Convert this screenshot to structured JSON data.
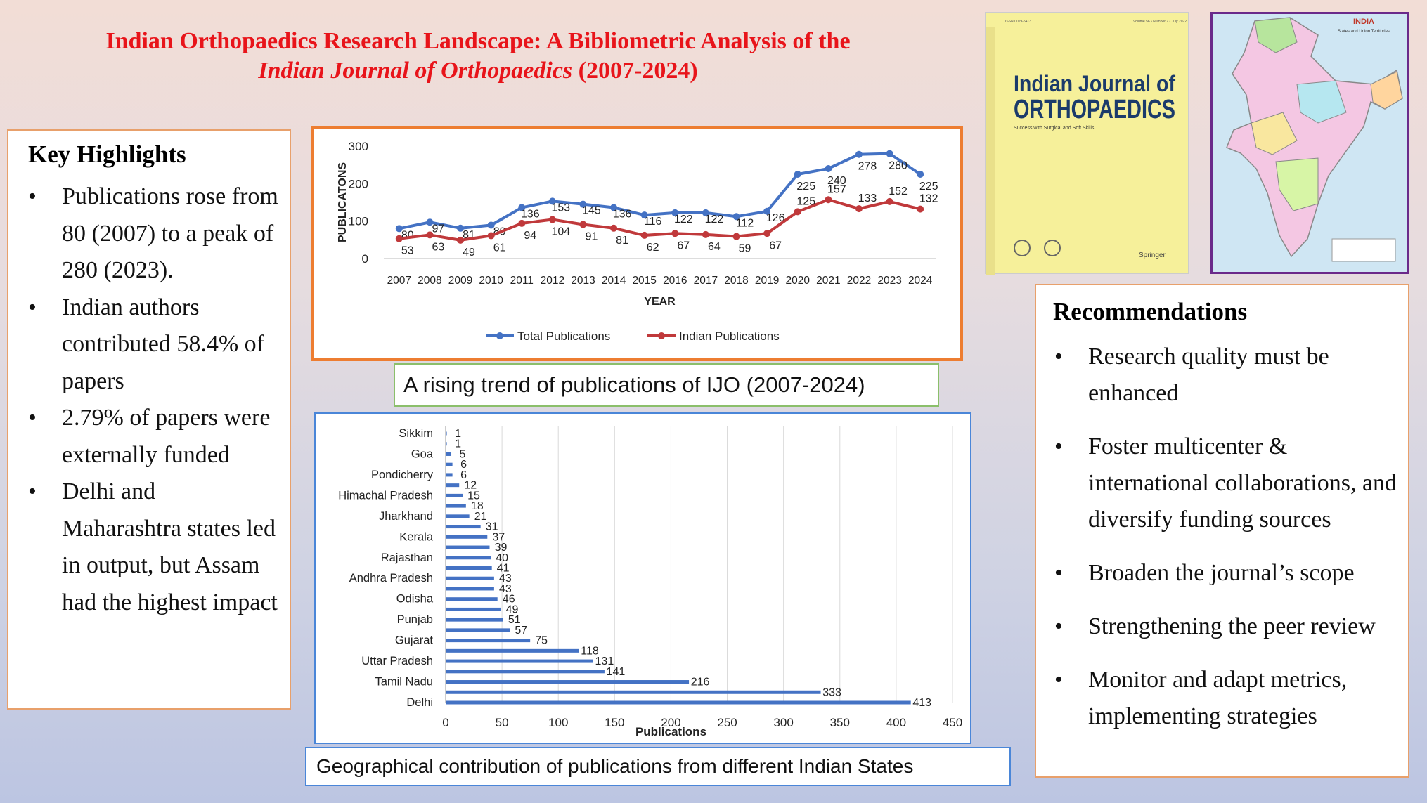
{
  "title": {
    "line1": "Indian Orthopaedics Research Landscape: A Bibliometric Analysis of the",
    "line2_italic": "Indian Journal of Orthopaedics",
    "line2_rest": " (2007-2024)"
  },
  "highlights": {
    "heading": "Key Highlights",
    "items": [
      "Publications rose from 80 (2007) to a peak of 280 (2023).",
      "Indian authors contributed 58.4% of papers",
      "2.79% of papers were externally funded",
      "Delhi and Maharashtra states led in output, but Assam had the highest impact"
    ]
  },
  "recommendations": {
    "heading": "Recommendations",
    "items": [
      "Research quality must be enhanced",
      "Foster multicenter & international collaborations, and diversify funding sources",
      "Broaden the journal’s scope",
      "Strengthening the peer review",
      "Monitor and adapt metrics, implementing strategies"
    ]
  },
  "captions": {
    "line_chart": "A rising trend of publications of IJO (2007-2024)",
    "bar_chart": "Geographical contribution of publications from different Indian States"
  },
  "journal_cover": {
    "title_line1": "Indian Journal of",
    "title_line2": "ORTHOPAEDICS",
    "subtitle": "Success with Surgical and Soft Skills",
    "volume": "Volume 56 • Number 7 • July 2022",
    "publisher": "Springer"
  },
  "map": {
    "title": "INDIA",
    "subtitle": "States and Union Territories"
  },
  "colors": {
    "total": "#4472c4",
    "indian": "#c0393b",
    "bar": "#4472c4",
    "title_red": "#e8141a"
  },
  "chart_data": [
    {
      "type": "line",
      "x": [
        "2007",
        "2008",
        "2009",
        "2010",
        "2011",
        "2012",
        "2013",
        "2014",
        "2015",
        "2016",
        "2017",
        "2018",
        "2019",
        "2020",
        "2021",
        "2022",
        "2023",
        "2024"
      ],
      "series": [
        {
          "name": "Total Publications",
          "values": [
            80,
            97,
            81,
            89,
            136,
            153,
            145,
            136,
            116,
            122,
            122,
            112,
            126,
            225,
            240,
            278,
            280,
            225
          ]
        },
        {
          "name": "Indian Publications",
          "values": [
            53,
            63,
            49,
            61,
            94,
            104,
            91,
            81,
            62,
            67,
            64,
            59,
            67,
            125,
            157,
            133,
            152,
            132
          ]
        }
      ],
      "xlabel": "YEAR",
      "ylabel": "PUBLICATONS",
      "ylim": [
        0,
        300
      ],
      "yticks": [
        0,
        100,
        200,
        300
      ]
    },
    {
      "type": "bar",
      "orientation": "horizontal",
      "categories": [
        "Delhi",
        "",
        "Tamil Nadu",
        "",
        "Uttar Pradesh",
        "",
        "Gujarat",
        "",
        "Punjab",
        "",
        "Odisha",
        "",
        "Andhra Pradesh",
        "",
        "Rajasthan",
        "",
        "Kerala",
        "",
        "Jharkhand",
        "",
        "Himachal Pradesh",
        "",
        "Pondicherry",
        "",
        "Goa",
        "",
        "Sikkim"
      ],
      "values": [
        413,
        333,
        216,
        141,
        131,
        118,
        75,
        57,
        51,
        49,
        46,
        43,
        43,
        41,
        40,
        39,
        37,
        31,
        21,
        18,
        15,
        12,
        6,
        6,
        5,
        1,
        1
      ],
      "xlabel": "Publications",
      "xlim": [
        0,
        450
      ],
      "xticks": [
        0,
        50,
        100,
        150,
        200,
        250,
        300,
        350,
        400,
        450
      ]
    }
  ]
}
